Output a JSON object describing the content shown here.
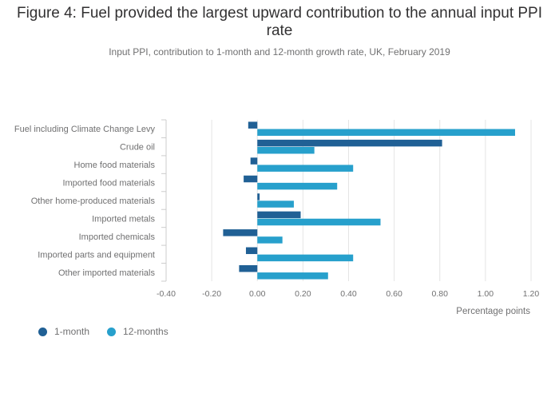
{
  "chart_data": {
    "type": "bar",
    "orientation": "horizontal",
    "title": "Figure 4: Fuel provided the largest upward contribution to the annual input PPI rate",
    "subtitle": "Input PPI, contribution to 1-month and 12-month growth rate, UK, February 2019",
    "xlabel": "Percentage points",
    "ylabel": "",
    "xlim": [
      -0.4,
      1.2
    ],
    "x_ticks": [
      "-0.40",
      "-0.20",
      "0.00",
      "0.20",
      "0.40",
      "0.60",
      "0.80",
      "1.00",
      "1.20"
    ],
    "categories": [
      "Fuel including Climate Change Levy",
      "Crude oil",
      "Home food materials",
      "Imported food materials",
      "Other home-produced materials",
      "Imported metals",
      "Imported chemicals",
      "Imported parts and equipment",
      "Other imported materials"
    ],
    "series": [
      {
        "name": "1-month",
        "color": "#206095",
        "values": [
          -0.04,
          0.81,
          -0.03,
          -0.06,
          0.01,
          0.19,
          -0.15,
          -0.05,
          -0.08
        ]
      },
      {
        "name": "12-months",
        "color": "#27a0cc",
        "values": [
          1.13,
          0.25,
          0.42,
          0.35,
          0.16,
          0.54,
          0.11,
          0.42,
          0.31
        ]
      }
    ],
    "grid": true,
    "legend_position": "bottom-left"
  }
}
